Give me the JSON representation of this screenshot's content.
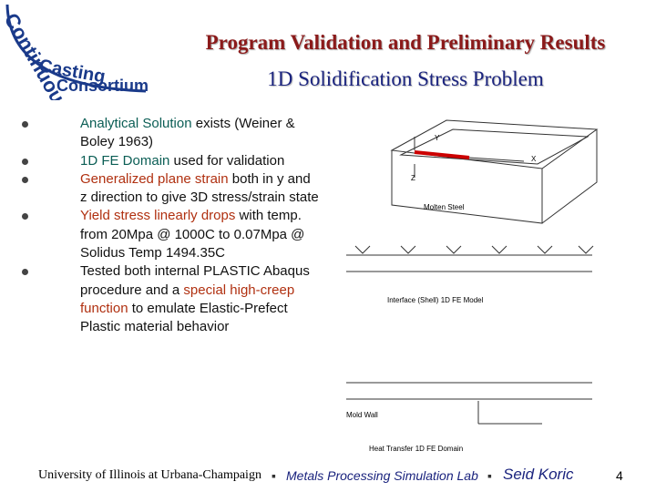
{
  "header": {
    "logo": [
      "Continuous",
      "Casting",
      "Consortium"
    ],
    "title": "Program Validation and Preliminary Results",
    "subtitle": "1D Solidification Stress Problem"
  },
  "bullets": [
    [
      {
        "text": "Analytical Solution",
        "color": "#0b5e55"
      },
      {
        "text": " exists (Weiner & Boley 1963)"
      }
    ],
    [
      {
        "text": "1D FE Domain",
        "color": "#0b5e55"
      },
      {
        "text": " used for validation"
      }
    ],
    [
      {
        "text": "Generalized plane strain",
        "color": "#b03010"
      },
      {
        "text": " both in y and z direction to give 3D stress/strain state"
      }
    ],
    [
      {
        "text": "Yield stress linearly drops",
        "color": "#b03010"
      },
      {
        "text": " with temp. from 20Mpa @ 1000C to 0.07Mpa @ Solidus Temp 1494.35C"
      }
    ],
    [
      {
        "text": "Tested both internal PLASTIC Abaqus procedure and a "
      },
      {
        "text": "special high-creep function",
        "color": "#b03010"
      },
      {
        "text": " to emulate Elastic-Prefect Plastic material behavior"
      }
    ]
  ],
  "figure": {
    "labels": [
      "Y",
      "X",
      "Z",
      "Molten Steel",
      "Interface (Shell) 1D FE Model",
      "Mold Wall",
      "Heat Transfer 1D FE Domain"
    ]
  },
  "footer": {
    "university": "University of Illinois at Urbana-Champaign",
    "lab": "Metals Processing Simulation Lab",
    "author": "Seid Koric",
    "page": "4"
  }
}
